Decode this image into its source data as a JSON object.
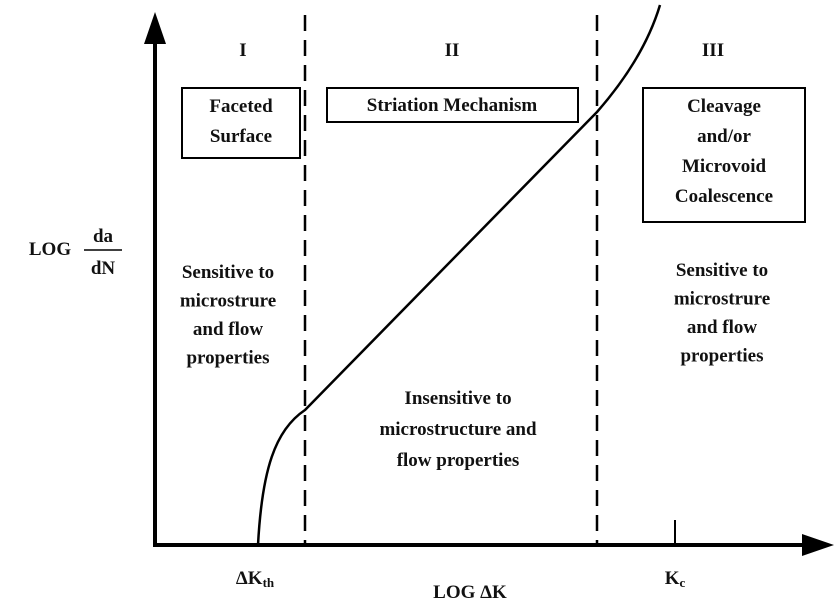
{
  "regions": [
    "I",
    "II",
    "III"
  ],
  "boxes": [
    {
      "lines": [
        "Faceted",
        "Surface"
      ]
    },
    {
      "lines": [
        "Striation Mechanism"
      ]
    },
    {
      "lines": [
        "Cleavage",
        "and/or",
        "Microvoid",
        "Coalescence"
      ]
    }
  ],
  "notes": [
    {
      "lines": [
        "Sensitive to",
        "microstrure",
        "and flow",
        "properties"
      ]
    },
    {
      "lines": [
        "Insensitive to",
        "microstructure and",
        "flow properties"
      ]
    },
    {
      "lines": [
        "Sensitive to",
        "microstrure",
        "and flow",
        "properties"
      ]
    }
  ],
  "y_axis": {
    "prefix": "LOG",
    "numerator": "da",
    "denominator": "dN"
  },
  "x_axis": {
    "label": "LOG  ΔK"
  },
  "ticks": [
    {
      "main": "ΔK",
      "sub": "th"
    },
    {
      "main": "K",
      "sub": "c"
    }
  ]
}
